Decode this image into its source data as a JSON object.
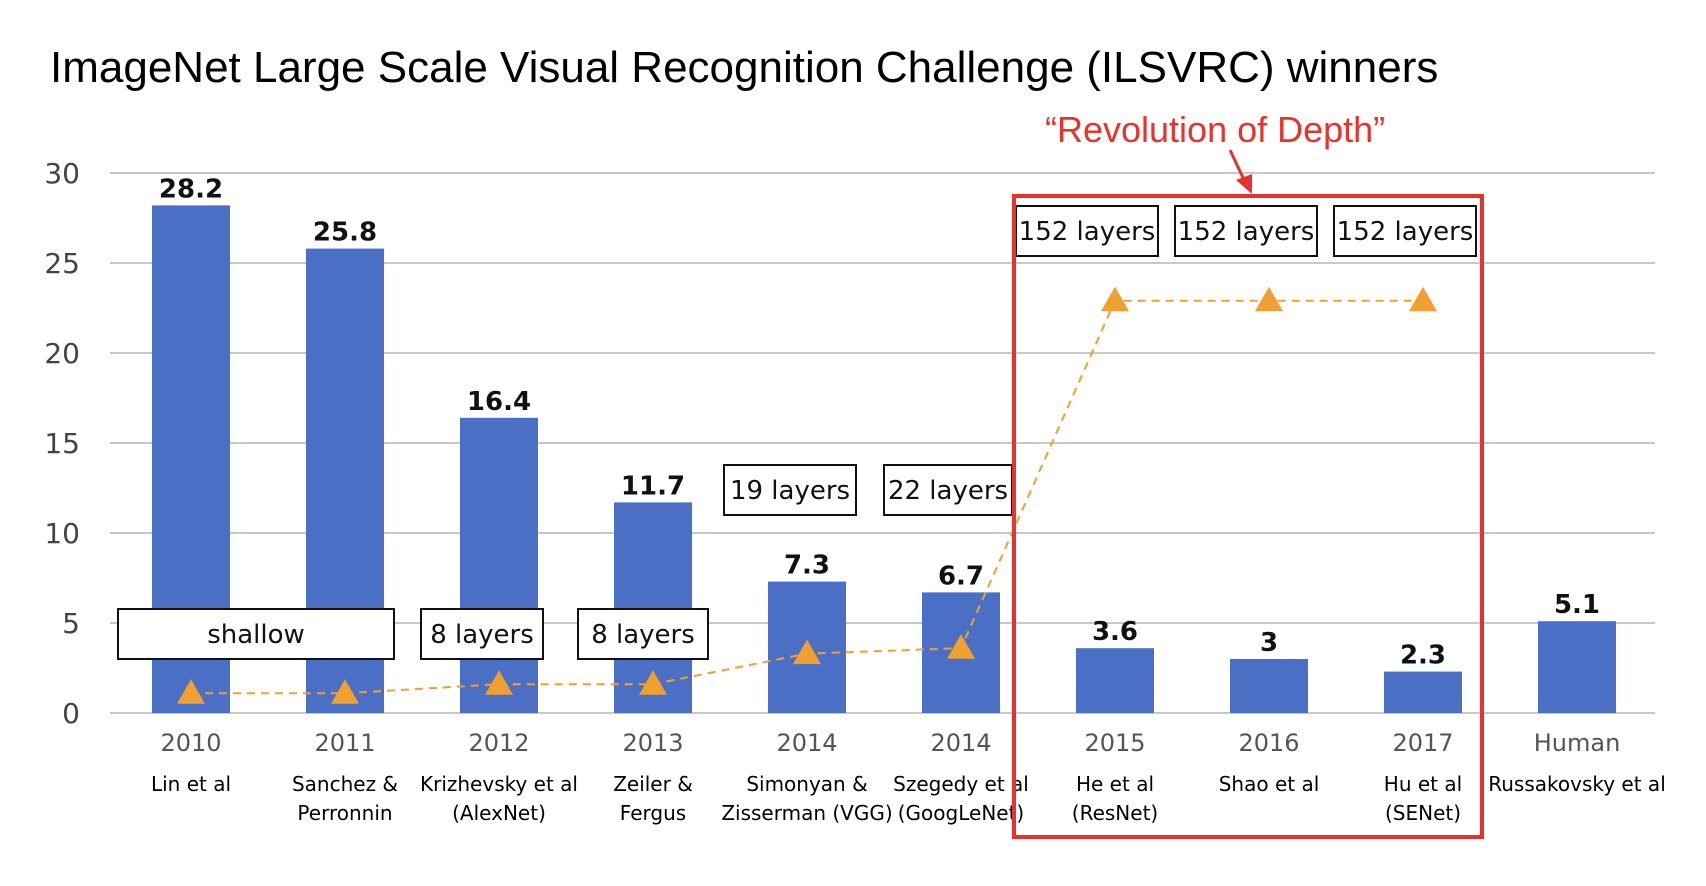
{
  "title": "ImageNet Large Scale Visual Recognition Challenge (ILSVRC) winners",
  "callout": "“Revolution of Depth”",
  "colors": {
    "bar": "#4a6fc4",
    "depth_line": "#f0a030",
    "highlight": "#e8322b",
    "grid": "#c8c8c8"
  },
  "chart_data": {
    "type": "bar",
    "title": "ImageNet Large Scale Visual Recognition Challenge (ILSVRC) winners",
    "ylim": [
      0,
      30
    ],
    "yticks": [
      0,
      5,
      10,
      15,
      20,
      25,
      30
    ],
    "grid": true,
    "categories": [
      "2010",
      "2011",
      "2012",
      "2013",
      "2014",
      "2014",
      "2015",
      "2016",
      "2017",
      "Human"
    ],
    "authors": [
      [
        "Lin et al"
      ],
      [
        "Sanchez &",
        "Perronnin"
      ],
      [
        "Krizhevsky et al",
        "(AlexNet)"
      ],
      [
        "Zeiler &",
        "Fergus"
      ],
      [
        "Simonyan &",
        "Zisserman (VGG)"
      ],
      [
        "Szegedy et al",
        "(GoogLeNet)"
      ],
      [
        "He et al",
        "(ResNet)"
      ],
      [
        "Shao et al"
      ],
      [
        "Hu et al",
        "(SENet)"
      ],
      [
        "Russakovsky et al"
      ]
    ],
    "values": [
      28.2,
      25.8,
      16.4,
      11.7,
      7.3,
      6.7,
      3.6,
      3,
      2.3,
      5.1
    ],
    "value_labels": [
      "28.2",
      "25.8",
      "16.4",
      "11.7",
      "7.3",
      "6.7",
      "3.6",
      "3",
      "2.3",
      "5.1"
    ],
    "depth_series": {
      "points_y": [
        1.1,
        1.1,
        1.6,
        1.6,
        3.3,
        3.6,
        22.9,
        22.9,
        22.9
      ],
      "labels": [
        {
          "text": "shallow",
          "covers": [
            0,
            1
          ]
        },
        {
          "text": "8 layers",
          "covers": [
            2
          ]
        },
        {
          "text": "8 layers",
          "covers": [
            3
          ]
        },
        {
          "text": "19 layers",
          "covers": [
            4
          ]
        },
        {
          "text": "22 layers",
          "covers": [
            5
          ]
        },
        {
          "text": "152 layers",
          "covers": [
            6
          ]
        },
        {
          "text": "152 layers",
          "covers": [
            7
          ]
        },
        {
          "text": "152 layers",
          "covers": [
            8
          ]
        }
      ]
    },
    "highlight_range": [
      6,
      8
    ]
  }
}
